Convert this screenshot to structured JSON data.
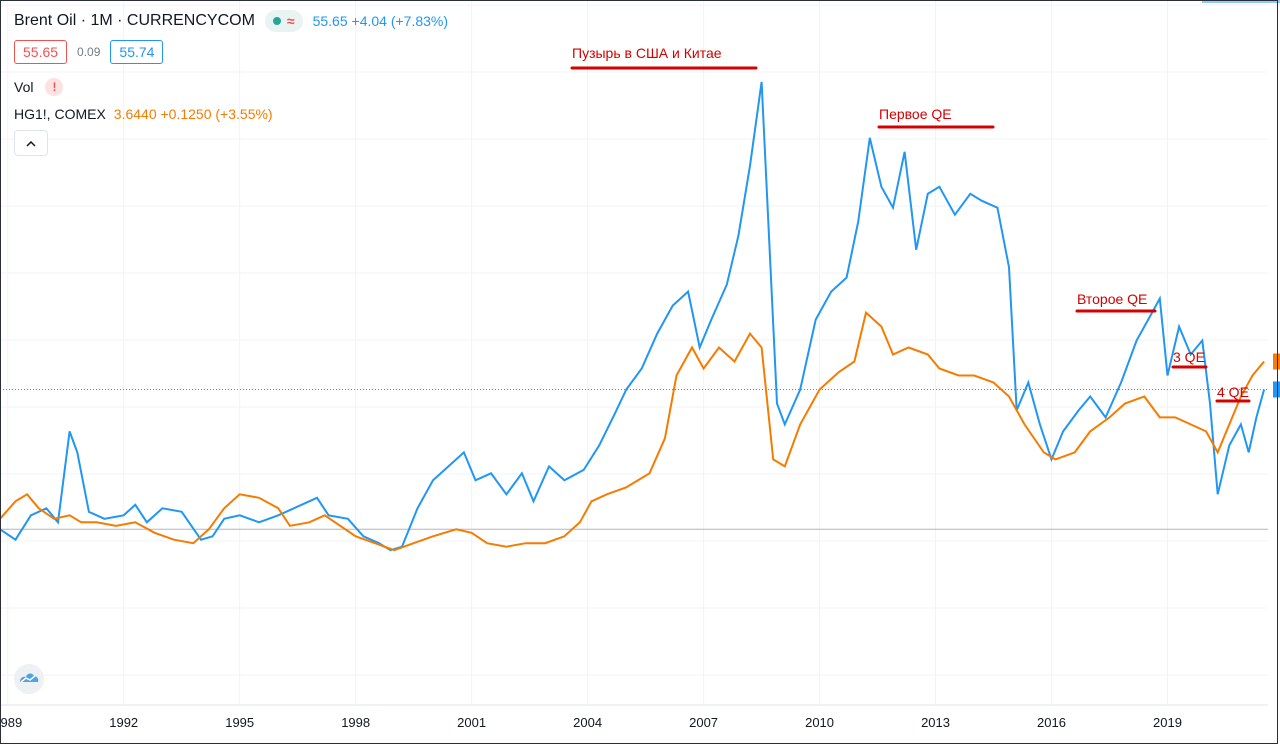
{
  "header": {
    "symbol": "Brent Oil · 1M · CURRENCYCOM",
    "main_quote": "55.65 +4.04 (+7.83%)",
    "bid": "55.65",
    "spread": "0.09",
    "ask": "55.74",
    "volume_label": "Vol",
    "warn_icon_text": "!",
    "wave_icon": "≈",
    "compare_symbol": "HG1!, COMEX",
    "compare_quote": "3.6440 +0.1250 (+3.55%)",
    "collapse_icon": "^"
  },
  "colors": {
    "oil": "#2196f3",
    "copper": "#f57c00",
    "annotation": "#d50000",
    "grid": "#f0f3fa"
  },
  "chart_data": {
    "type": "line",
    "x_ticks": [
      "1989",
      "1992",
      "1995",
      "1998",
      "2001",
      "2004",
      "2007",
      "2010",
      "2013",
      "2016",
      "2019"
    ],
    "xlim": [
      1988.8,
      2021.6
    ],
    "ylim": [
      -50,
      140
    ],
    "y_scale": "percent change from start (no labels shown)",
    "grid": true,
    "series": [
      {
        "name": "Brent Oil",
        "color": "#2196f3",
        "points": [
          [
            1988.8,
            0
          ],
          [
            1989.2,
            -3
          ],
          [
            1989.6,
            4
          ],
          [
            1990.0,
            6
          ],
          [
            1990.3,
            2
          ],
          [
            1990.6,
            28
          ],
          [
            1990.8,
            22
          ],
          [
            1991.1,
            5
          ],
          [
            1991.5,
            3
          ],
          [
            1992.0,
            4
          ],
          [
            1992.3,
            7
          ],
          [
            1992.6,
            2
          ],
          [
            1993.0,
            6
          ],
          [
            1993.5,
            5
          ],
          [
            1994.0,
            -3
          ],
          [
            1994.3,
            -2
          ],
          [
            1994.6,
            3
          ],
          [
            1995.0,
            4
          ],
          [
            1995.5,
            2
          ],
          [
            1996.0,
            4
          ],
          [
            1996.4,
            6
          ],
          [
            1996.8,
            8
          ],
          [
            1997.0,
            9
          ],
          [
            1997.3,
            4
          ],
          [
            1997.8,
            3
          ],
          [
            1998.2,
            -2
          ],
          [
            1998.6,
            -4
          ],
          [
            1998.9,
            -6
          ],
          [
            1999.2,
            -5
          ],
          [
            1999.6,
            6
          ],
          [
            2000.0,
            14
          ],
          [
            2000.4,
            18
          ],
          [
            2000.8,
            22
          ],
          [
            2001.1,
            14
          ],
          [
            2001.5,
            16
          ],
          [
            2001.9,
            10
          ],
          [
            2002.3,
            16
          ],
          [
            2002.6,
            8
          ],
          [
            2003.0,
            18
          ],
          [
            2003.4,
            14
          ],
          [
            2003.9,
            17
          ],
          [
            2004.3,
            24
          ],
          [
            2004.7,
            33
          ],
          [
            2005.0,
            40
          ],
          [
            2005.4,
            46
          ],
          [
            2005.8,
            56
          ],
          [
            2006.2,
            64
          ],
          [
            2006.6,
            68
          ],
          [
            2006.9,
            52
          ],
          [
            2007.2,
            60
          ],
          [
            2007.6,
            70
          ],
          [
            2007.9,
            84
          ],
          [
            2008.2,
            104
          ],
          [
            2008.5,
            128
          ],
          [
            2008.7,
            82
          ],
          [
            2008.9,
            36
          ],
          [
            2009.1,
            30
          ],
          [
            2009.5,
            40
          ],
          [
            2009.9,
            60
          ],
          [
            2010.3,
            68
          ],
          [
            2010.7,
            72
          ],
          [
            2011.0,
            88
          ],
          [
            2011.3,
            112
          ],
          [
            2011.6,
            98
          ],
          [
            2011.9,
            92
          ],
          [
            2012.2,
            108
          ],
          [
            2012.5,
            80
          ],
          [
            2012.8,
            96
          ],
          [
            2013.1,
            98
          ],
          [
            2013.5,
            90
          ],
          [
            2013.9,
            96
          ],
          [
            2014.2,
            94
          ],
          [
            2014.6,
            92
          ],
          [
            2014.9,
            75
          ],
          [
            2015.1,
            34
          ],
          [
            2015.4,
            42
          ],
          [
            2015.7,
            30
          ],
          [
            2016.0,
            20
          ],
          [
            2016.3,
            28
          ],
          [
            2016.7,
            34
          ],
          [
            2017.0,
            38
          ],
          [
            2017.4,
            32
          ],
          [
            2017.8,
            42
          ],
          [
            2018.2,
            54
          ],
          [
            2018.5,
            60
          ],
          [
            2018.8,
            66
          ],
          [
            2019.0,
            44
          ],
          [
            2019.3,
            58
          ],
          [
            2019.6,
            50
          ],
          [
            2019.9,
            54
          ],
          [
            2020.1,
            36
          ],
          [
            2020.3,
            10
          ],
          [
            2020.6,
            24
          ],
          [
            2020.9,
            30
          ],
          [
            2021.1,
            22
          ],
          [
            2021.3,
            32
          ],
          [
            2021.5,
            40
          ]
        ]
      },
      {
        "name": "HG1!, COMEX",
        "color": "#f57c00",
        "points": [
          [
            1988.8,
            3
          ],
          [
            1989.2,
            8
          ],
          [
            1989.5,
            10
          ],
          [
            1989.8,
            6
          ],
          [
            1990.2,
            3
          ],
          [
            1990.6,
            4
          ],
          [
            1990.9,
            2
          ],
          [
            1991.3,
            2
          ],
          [
            1991.8,
            1
          ],
          [
            1992.3,
            2
          ],
          [
            1992.8,
            -1
          ],
          [
            1993.3,
            -3
          ],
          [
            1993.8,
            -4
          ],
          [
            1994.2,
            0
          ],
          [
            1994.6,
            6
          ],
          [
            1995.0,
            10
          ],
          [
            1995.5,
            9
          ],
          [
            1996.0,
            6
          ],
          [
            1996.3,
            1
          ],
          [
            1996.8,
            2
          ],
          [
            1997.2,
            4
          ],
          [
            1997.6,
            1
          ],
          [
            1998.0,
            -2
          ],
          [
            1998.5,
            -4
          ],
          [
            1999.0,
            -6
          ],
          [
            1999.5,
            -4
          ],
          [
            2000.0,
            -2
          ],
          [
            2000.6,
            0
          ],
          [
            2001.0,
            -1
          ],
          [
            2001.4,
            -4
          ],
          [
            2001.9,
            -5
          ],
          [
            2002.4,
            -4
          ],
          [
            2002.9,
            -4
          ],
          [
            2003.4,
            -2
          ],
          [
            2003.8,
            2
          ],
          [
            2004.1,
            8
          ],
          [
            2004.5,
            10
          ],
          [
            2005.0,
            12
          ],
          [
            2005.6,
            16
          ],
          [
            2006.0,
            26
          ],
          [
            2006.3,
            44
          ],
          [
            2006.7,
            52
          ],
          [
            2007.0,
            46
          ],
          [
            2007.4,
            52
          ],
          [
            2007.8,
            48
          ],
          [
            2008.2,
            56
          ],
          [
            2008.5,
            52
          ],
          [
            2008.8,
            20
          ],
          [
            2009.1,
            18
          ],
          [
            2009.5,
            30
          ],
          [
            2010.0,
            40
          ],
          [
            2010.5,
            45
          ],
          [
            2010.9,
            48
          ],
          [
            2011.2,
            62
          ],
          [
            2011.6,
            58
          ],
          [
            2011.9,
            50
          ],
          [
            2012.3,
            52
          ],
          [
            2012.8,
            50
          ],
          [
            2013.1,
            46
          ],
          [
            2013.6,
            44
          ],
          [
            2014.0,
            44
          ],
          [
            2014.5,
            42
          ],
          [
            2014.9,
            38
          ],
          [
            2015.3,
            30
          ],
          [
            2015.8,
            22
          ],
          [
            2016.1,
            20
          ],
          [
            2016.6,
            22
          ],
          [
            2017.0,
            28
          ],
          [
            2017.5,
            32
          ],
          [
            2017.9,
            36
          ],
          [
            2018.4,
            38
          ],
          [
            2018.8,
            32
          ],
          [
            2019.2,
            32
          ],
          [
            2019.6,
            30
          ],
          [
            2020.0,
            28
          ],
          [
            2020.3,
            22
          ],
          [
            2020.6,
            30
          ],
          [
            2020.9,
            38
          ],
          [
            2021.2,
            44
          ],
          [
            2021.5,
            48
          ]
        ]
      }
    ],
    "annotations": [
      {
        "text": "Пузырь в США и Китае",
        "x": 2005.8
      },
      {
        "text": "Первое QE",
        "x": 2012.5
      },
      {
        "text": "Второе QE",
        "x": 2018.1
      },
      {
        "text": "3 QE",
        "x": 2019.4
      },
      {
        "text": "4 QE",
        "x": 2020.9
      }
    ]
  }
}
